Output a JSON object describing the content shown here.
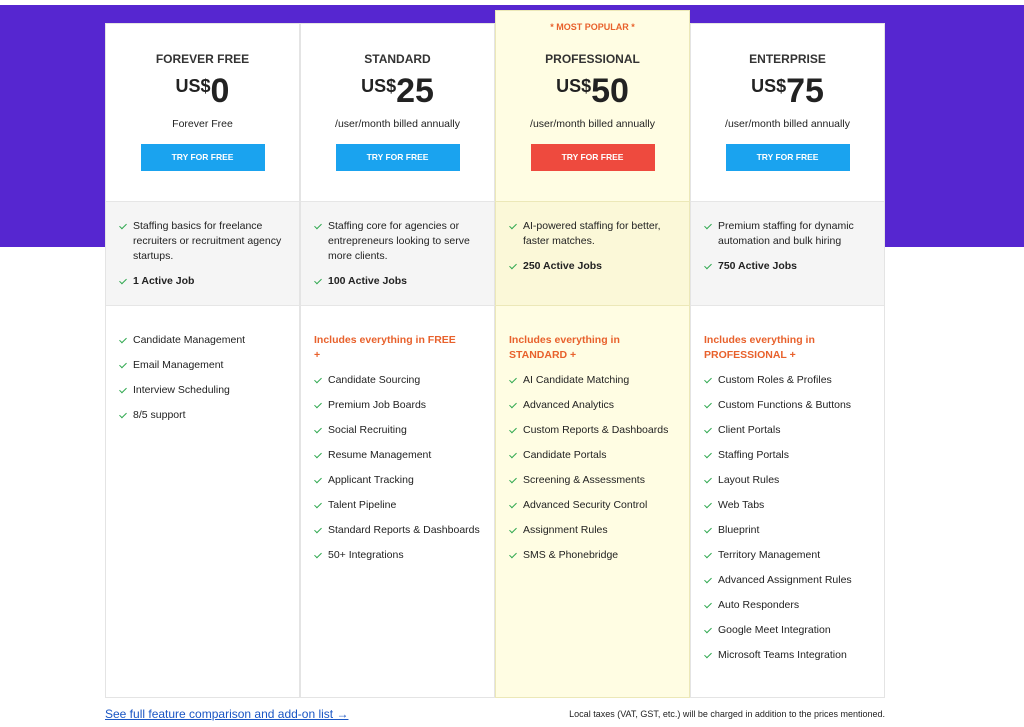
{
  "badge": "* MOST POPULAR *",
  "plans": [
    {
      "name": "FOREVER FREE",
      "currency": "US$",
      "price": 0,
      "period": "Forever Free",
      "button": "TRY FOR FREE",
      "description": "Staffing basics for freelance recruiters or recruitment agency startups.",
      "jobs": "1 Active Job",
      "features": [
        "Candidate Management",
        "Email Management",
        "Interview Scheduling",
        "8/5 support"
      ]
    },
    {
      "name": "STANDARD",
      "currency": "US$",
      "price": 25,
      "period": "/user/month billed annually",
      "button": "TRY FOR FREE",
      "description": "Staffing core for agencies or entrepreneurs looking to serve more clients.",
      "jobs": "100 Active Jobs",
      "includes": "Includes everything in FREE +",
      "features": [
        "Candidate Sourcing",
        "Premium Job Boards",
        "Social Recruiting",
        "Resume Management",
        "Applicant Tracking",
        "Talent Pipeline",
        "Standard Reports & Dashboards",
        "50+ Integrations"
      ]
    },
    {
      "name": "PROFESSIONAL",
      "currency": "US$",
      "price": 50,
      "period": "/user/month billed annually",
      "button": "TRY FOR FREE",
      "description": "AI-powered staffing for better, faster matches.",
      "jobs": "250 Active Jobs",
      "includes": "Includes everything in STANDARD +",
      "features": [
        "AI Candidate Matching",
        "Advanced Analytics",
        "Custom Reports & Dashboards",
        "Candidate Portals",
        "Screening & Assessments",
        "Advanced Security Control",
        "Assignment Rules",
        "SMS & Phonebridge"
      ]
    },
    {
      "name": "ENTERPRISE",
      "currency": "US$",
      "price": 75,
      "period": "/user/month billed annually",
      "button": "TRY FOR FREE",
      "description": "Premium staffing for dynamic automation and bulk hiring",
      "jobs": "750 Active Jobs",
      "includes": "Includes everything in PROFESSIONAL +",
      "features": [
        "Custom Roles & Profiles",
        "Custom Functions & Buttons",
        "Client Portals",
        "Staffing Portals",
        "Layout Rules",
        "Web Tabs",
        "Blueprint",
        "Territory Management",
        "Advanced Assignment Rules",
        "Auto Responders",
        "Google Meet Integration",
        "Microsoft Teams Integration"
      ]
    }
  ],
  "footer": {
    "link": "See full feature comparison and add-on list →",
    "note": "Local taxes (VAT, GST, etc.) will be charged in addition to the prices mentioned."
  }
}
